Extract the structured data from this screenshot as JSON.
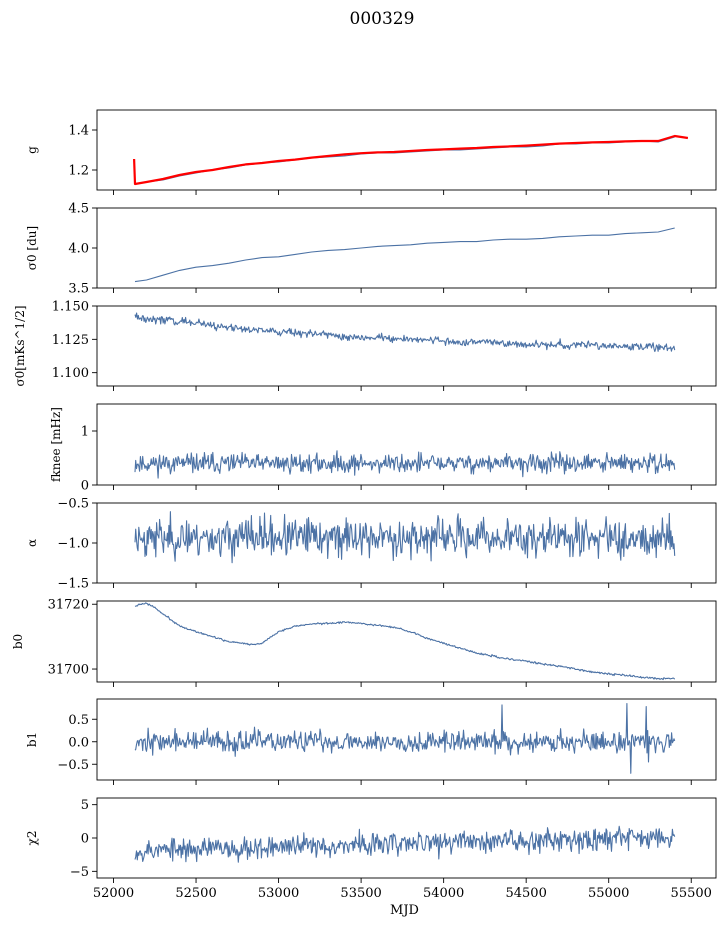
{
  "title": "000329",
  "colors": {
    "series": "#4c72a5",
    "fit": "#ff0000",
    "axes": "#000000"
  },
  "chart_data": [
    {
      "type": "line",
      "ylabel": "g",
      "xlim": [
        51900,
        55650
      ],
      "ylim": [
        1.1,
        1.5
      ],
      "yticks": [
        1.2,
        1.4
      ],
      "ytick_labels": [
        "1.2",
        "1.4"
      ],
      "series": [
        {
          "color": "#4c72a5",
          "kind": "trend",
          "x": [
            52130,
            52200,
            52300,
            52400,
            52500,
            52600,
            52700,
            52800,
            52900,
            53000,
            53100,
            53200,
            53300,
            53400,
            53500,
            53600,
            53700,
            53800,
            53900,
            54000,
            54100,
            54200,
            54300,
            54400,
            54500,
            54600,
            54700,
            54800,
            54900,
            55000,
            55100,
            55200,
            55300,
            55400
          ],
          "y": [
            1.13,
            1.14,
            1.15,
            1.17,
            1.185,
            1.2,
            1.21,
            1.225,
            1.235,
            1.24,
            1.25,
            1.26,
            1.265,
            1.27,
            1.28,
            1.285,
            1.285,
            1.29,
            1.295,
            1.3,
            1.3,
            1.305,
            1.31,
            1.315,
            1.315,
            1.32,
            1.33,
            1.33,
            1.335,
            1.335,
            1.34,
            1.345,
            1.34,
            1.365
          ]
        },
        {
          "color": "#ff0000",
          "kind": "trend",
          "width": 2.2,
          "x": [
            52125,
            52130,
            52200,
            52300,
            52400,
            52500,
            52600,
            52700,
            52800,
            52900,
            53000,
            53100,
            53200,
            53300,
            53400,
            53500,
            53600,
            53700,
            53800,
            53900,
            54000,
            54100,
            54200,
            54300,
            54400,
            54500,
            54600,
            54700,
            54800,
            54900,
            55000,
            55100,
            55200,
            55300,
            55400,
            55480
          ],
          "y": [
            1.255,
            1.13,
            1.14,
            1.155,
            1.175,
            1.19,
            1.2,
            1.215,
            1.228,
            1.235,
            1.245,
            1.252,
            1.262,
            1.27,
            1.278,
            1.284,
            1.288,
            1.29,
            1.295,
            1.3,
            1.303,
            1.307,
            1.31,
            1.315,
            1.318,
            1.322,
            1.327,
            1.332,
            1.335,
            1.338,
            1.34,
            1.343,
            1.345,
            1.345,
            1.37,
            1.36
          ]
        }
      ]
    },
    {
      "type": "line",
      "ylabel": "σ0 [du]",
      "xlim": [
        51900,
        55650
      ],
      "ylim": [
        3.5,
        4.5
      ],
      "yticks": [
        3.5,
        4.0,
        4.5
      ],
      "ytick_labels": [
        "3.5",
        "4.0",
        "4.5"
      ],
      "series": [
        {
          "color": "#4c72a5",
          "kind": "trend",
          "x": [
            52130,
            52200,
            52300,
            52400,
            52500,
            52600,
            52700,
            52800,
            52900,
            53000,
            53100,
            53200,
            53300,
            53400,
            53500,
            53600,
            53700,
            53800,
            53900,
            54000,
            54100,
            54200,
            54300,
            54400,
            54500,
            54600,
            54700,
            54800,
            54900,
            55000,
            55100,
            55200,
            55300,
            55400
          ],
          "y": [
            3.58,
            3.6,
            3.66,
            3.72,
            3.76,
            3.78,
            3.81,
            3.85,
            3.88,
            3.89,
            3.92,
            3.95,
            3.97,
            3.98,
            4.0,
            4.02,
            4.03,
            4.04,
            4.06,
            4.07,
            4.08,
            4.08,
            4.1,
            4.11,
            4.11,
            4.12,
            4.14,
            4.15,
            4.16,
            4.16,
            4.18,
            4.19,
            4.2,
            4.25
          ]
        }
      ]
    },
    {
      "type": "line",
      "ylabel": "σ0[mKs^1/2]",
      "xlim": [
        51900,
        55650
      ],
      "ylim": [
        1.09,
        1.15
      ],
      "yticks": [
        1.1,
        1.125,
        1.15
      ],
      "ytick_labels": [
        "1.100",
        "1.125",
        "1.150"
      ],
      "series": [
        {
          "color": "#4c72a5",
          "kind": "trend",
          "noise": 0.0015,
          "x": [
            52130,
            52200,
            52300,
            52400,
            52500,
            52600,
            52700,
            52800,
            52900,
            53000,
            53100,
            53200,
            53300,
            53400,
            53500,
            53600,
            53700,
            53800,
            53900,
            54000,
            54100,
            54200,
            54300,
            54400,
            54500,
            54600,
            54700,
            54800,
            54900,
            55000,
            55100,
            55200,
            55300,
            55400
          ],
          "y": [
            1.143,
            1.14,
            1.14,
            1.139,
            1.137,
            1.135,
            1.134,
            1.133,
            1.132,
            1.131,
            1.13,
            1.129,
            1.129,
            1.127,
            1.127,
            1.126,
            1.126,
            1.125,
            1.124,
            1.124,
            1.123,
            1.123,
            1.123,
            1.122,
            1.121,
            1.121,
            1.121,
            1.121,
            1.121,
            1.12,
            1.12,
            1.119,
            1.119,
            1.118
          ]
        }
      ]
    },
    {
      "type": "line",
      "ylabel": "fknee [mHz]",
      "xlim": [
        51900,
        55650
      ],
      "ylim": [
        0,
        1.5
      ],
      "yticks": [
        0,
        1
      ],
      "ytick_labels": [
        "0",
        "1"
      ],
      "series": [
        {
          "color": "#4c72a5",
          "kind": "noise",
          "x0": 52130,
          "x1": 55400,
          "n": 700,
          "mean": 0.4,
          "amp": 0.09,
          "clip": [
            0.12,
            0.75
          ],
          "seed": 11
        }
      ]
    },
    {
      "type": "line",
      "ylabel": "α",
      "xlim": [
        51900,
        55650
      ],
      "ylim": [
        -1.5,
        -0.5
      ],
      "yticks": [
        -1.5,
        -1.0,
        -0.5
      ],
      "ytick_labels": [
        "−1.5",
        "−1.0",
        "−0.5"
      ],
      "series": [
        {
          "color": "#4c72a5",
          "kind": "noise",
          "x0": 52130,
          "x1": 55400,
          "n": 700,
          "mean": -0.93,
          "amp": 0.12,
          "clip": [
            -1.42,
            -0.52
          ],
          "seed": 23
        }
      ]
    },
    {
      "type": "line",
      "ylabel": "b0",
      "xlim": [
        51900,
        55650
      ],
      "ylim": [
        31696,
        31721
      ],
      "yticks": [
        31700,
        31720
      ],
      "ytick_labels": [
        "31700",
        "31720"
      ],
      "series": [
        {
          "color": "#4c72a5",
          "kind": "trend",
          "noise": 0.15,
          "x": [
            52130,
            52200,
            52250,
            52300,
            52400,
            52500,
            52600,
            52700,
            52800,
            52850,
            52900,
            53000,
            53100,
            53200,
            53300,
            53400,
            53500,
            53600,
            53700,
            53800,
            53900,
            54000,
            54100,
            54200,
            54300,
            54400,
            54500,
            54600,
            54700,
            54800,
            54900,
            55000,
            55100,
            55200,
            55300,
            55400
          ],
          "y": [
            31719.5,
            31720.3,
            31719,
            31717,
            31713.3,
            31711.5,
            31710,
            31708.5,
            31707.8,
            31707.5,
            31708,
            31711.5,
            31713.2,
            31714,
            31714,
            31714.5,
            31714,
            31713.5,
            31712.8,
            31711.5,
            31709.5,
            31708,
            31706.5,
            31705,
            31704,
            31703,
            31702.5,
            31701.5,
            31701,
            31700,
            31699,
            31698.5,
            31698,
            31697.5,
            31697,
            31697
          ]
        }
      ]
    },
    {
      "type": "line",
      "ylabel": "b1",
      "xlim": [
        51900,
        55650
      ],
      "ylim": [
        -0.85,
        0.95
      ],
      "yticks": [
        -0.5,
        0.0,
        0.5
      ],
      "ytick_labels": [
        "−0.5",
        "0.0",
        "0.5"
      ],
      "series": [
        {
          "color": "#4c72a5",
          "kind": "noise",
          "x0": 52130,
          "x1": 55400,
          "n": 700,
          "mean": 0.0,
          "amp": 0.12,
          "clip": [
            -0.4,
            0.55
          ],
          "seed": 37,
          "spikes": [
            [
              54355,
              0.82
            ],
            [
              55110,
              0.85
            ],
            [
              55135,
              -0.7
            ],
            [
              55225,
              0.78
            ],
            [
              55240,
              -0.45
            ]
          ]
        }
      ]
    },
    {
      "type": "line",
      "ylabel": "χ2",
      "xlabel": "MJD",
      "xlim": [
        51900,
        55650
      ],
      "ylim": [
        -6,
        6
      ],
      "yticks": [
        -5,
        0,
        5
      ],
      "ytick_labels": [
        "−5",
        "0",
        "5"
      ],
      "xticks": [
        52000,
        52500,
        53000,
        53500,
        54000,
        54500,
        55000,
        55500
      ],
      "xtick_labels": [
        "52000",
        "52500",
        "53000",
        "53500",
        "54000",
        "54500",
        "55000",
        "55500"
      ],
      "series": [
        {
          "color": "#4c72a5",
          "kind": "noise",
          "x0": 52130,
          "x1": 55400,
          "n": 700,
          "mean": -0.3,
          "amp": 0.85,
          "clip": [
            -3.8,
            2.6
          ],
          "seed": 53,
          "trend": [
            -1.6,
            0.6
          ]
        }
      ]
    }
  ]
}
